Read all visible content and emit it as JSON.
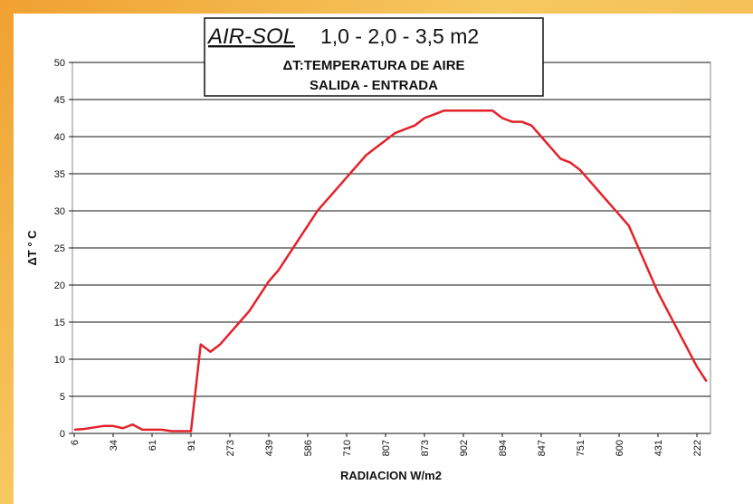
{
  "chart_data": {
    "type": "line",
    "title": "AIR-SOL",
    "title_suffix": "1,0 - 2,0 - 3,5 m2",
    "subtitle": [
      "ΔT:TEMPERATURA DE AIRE",
      "SALIDA - ENTRADA"
    ],
    "x_label": "RADIACION W/m2",
    "y_label": "ΔT ° C",
    "categories": [
      "6",
      null,
      null,
      null,
      "34",
      null,
      null,
      null,
      "61",
      null,
      null,
      null,
      "91",
      null,
      null,
      null,
      "273",
      null,
      null,
      null,
      "439",
      null,
      null,
      null,
      "586",
      null,
      null,
      null,
      "710",
      null,
      null,
      null,
      "807",
      null,
      null,
      null,
      "873",
      null,
      null,
      null,
      "902",
      null,
      null,
      null,
      "894",
      null,
      null,
      null,
      "847",
      null,
      null,
      null,
      "751",
      null,
      null,
      null,
      "600",
      null,
      null,
      null,
      "431",
      null,
      null,
      null,
      "222",
      null
    ],
    "values": [
      0.5,
      0.6,
      0.8,
      1.0,
      1.0,
      0.7,
      1.2,
      0.5,
      0.5,
      0.5,
      0.3,
      0.3,
      0.3,
      12,
      11,
      12,
      13.5,
      15,
      16.5,
      18.5,
      20.5,
      22,
      24,
      26,
      28,
      30,
      31.5,
      33,
      34.5,
      36,
      37.5,
      38.5,
      39.5,
      40.5,
      41,
      41.5,
      42.5,
      43,
      43.5,
      43.5,
      43.5,
      43.5,
      43.5,
      43.5,
      42.5,
      42,
      42,
      41.5,
      40,
      38.5,
      37,
      36.5,
      35.5,
      34,
      32.5,
      31,
      29.5,
      28,
      25,
      22,
      19,
      16.5,
      14,
      11.5,
      9,
      7
    ],
    "color": "#e3222b",
    "ylim": [
      0,
      50
    ],
    "yticks": [
      0,
      5,
      10,
      15,
      20,
      25,
      30,
      35,
      40,
      45,
      50
    ],
    "grid": true
  }
}
